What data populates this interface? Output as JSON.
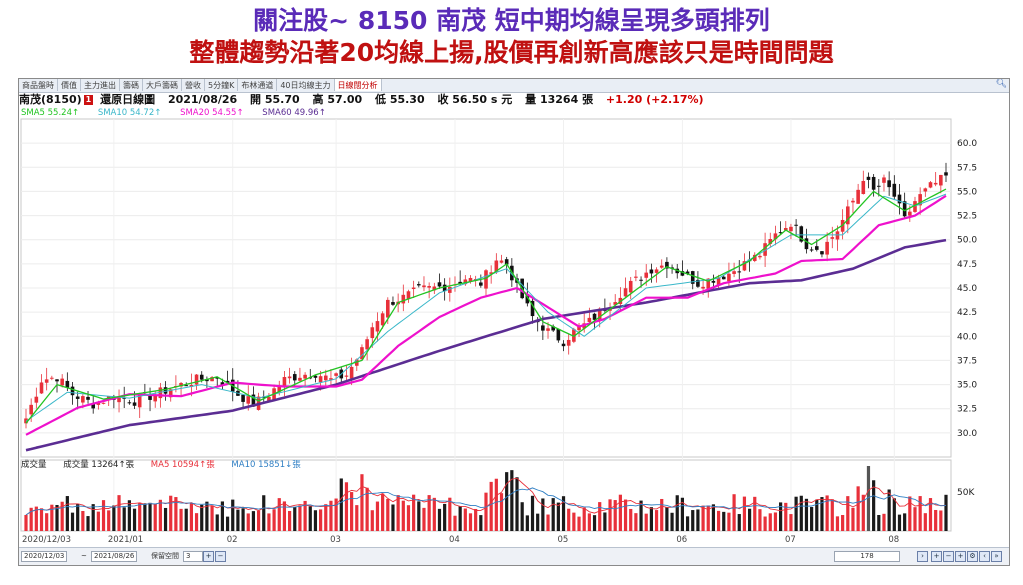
{
  "headline": {
    "line1": "關注股~ 8150 南茂  短中期均線呈現多頭排列",
    "line2": "整體趨勢沿著20均線上揚,股價再創新高應該只是時間問題"
  },
  "tabs": [
    "商品盤時",
    "價值",
    "主力進出",
    "籌碼",
    "大戶籌碼",
    "營收",
    "5分鐘K",
    "布林通道",
    "40日均線主力",
    "日線闊分析"
  ],
  "stock_info": {
    "name": "南茂(8150)",
    "badge": "1",
    "mode": "還原日線圖",
    "date": "2021/08/26",
    "open": "開 55.70",
    "high": "高 57.00",
    "low": "低 55.30",
    "close": "收 56.50 s 元",
    "volume": "量 13264 張",
    "change": "+1.20 (+2.17%)"
  },
  "legend": {
    "sma5": "SMA5 55.24↑",
    "sma10": "SMA10 54.72↑",
    "sma20": "SMA20 54.55↑",
    "sma60": "SMA60 49.96↑"
  },
  "volume_legend": {
    "title": "成交量",
    "vol": "成交量 13264↑張",
    "ma5": "MA5 10594↑張",
    "ma10": "MA10 15851↓張"
  },
  "colors": {
    "up": "#e8303a",
    "down": "#111111",
    "sma5": "#22c422",
    "sma10": "#39b7c9",
    "sma20": "#ee11cc",
    "sma60": "#5b2d93"
  },
  "bottom_bar": {
    "start_date": "2020/12/03",
    "end_date": "2021/08/26",
    "space_label": "保留空間",
    "space_value": "3",
    "bars": "178"
  },
  "chart_data": {
    "type": "candlestick",
    "xlabels": [
      "2020/12/03",
      "2021/01",
      "02",
      "03",
      "04",
      "05",
      "06",
      "07",
      "08"
    ],
    "yticks": [
      30.0,
      32.5,
      35.0,
      37.5,
      40.0,
      42.5,
      45.0,
      47.5,
      50.0,
      52.5,
      55.0,
      57.5,
      60.0
    ],
    "ylim": [
      27.5,
      62.5
    ],
    "volume_tick": "50K",
    "ohlc_anchors": [
      {
        "i": 0,
        "c": 31.5
      },
      {
        "i": 3,
        "c": 35.5
      },
      {
        "i": 6,
        "c": 35.8
      },
      {
        "i": 9,
        "c": 34.0
      },
      {
        "i": 13,
        "c": 33.0
      },
      {
        "i": 17,
        "c": 33.8
      },
      {
        "i": 21,
        "c": 33.3
      },
      {
        "i": 25,
        "c": 34.0
      },
      {
        "i": 29,
        "c": 34.8
      },
      {
        "i": 33,
        "c": 35.5
      },
      {
        "i": 37,
        "c": 35.8
      },
      {
        "i": 41,
        "c": 34.0
      },
      {
        "i": 44,
        "c": 33.0
      },
      {
        "i": 47,
        "c": 34.0
      },
      {
        "i": 50,
        "c": 35.5
      },
      {
        "i": 53,
        "c": 36.0
      },
      {
        "i": 56,
        "c": 36.2
      },
      {
        "i": 59,
        "c": 35.5
      },
      {
        "i": 62,
        "c": 36.0
      },
      {
        "i": 65,
        "c": 38.5
      },
      {
        "i": 67,
        "c": 41.0
      },
      {
        "i": 70,
        "c": 43.5
      },
      {
        "i": 73,
        "c": 44.0
      },
      {
        "i": 76,
        "c": 44.8
      },
      {
        "i": 79,
        "c": 45.0
      },
      {
        "i": 82,
        "c": 45.3
      },
      {
        "i": 85,
        "c": 46.0
      },
      {
        "i": 88,
        "c": 45.5
      },
      {
        "i": 91,
        "c": 48.0
      },
      {
        "i": 93,
        "c": 47.5
      },
      {
        "i": 95,
        "c": 45.0
      },
      {
        "i": 98,
        "c": 42.0
      },
      {
        "i": 101,
        "c": 40.5
      },
      {
        "i": 104,
        "c": 39.5
      },
      {
        "i": 106,
        "c": 40.5
      },
      {
        "i": 109,
        "c": 41.5
      },
      {
        "i": 112,
        "c": 43.0
      },
      {
        "i": 115,
        "c": 44.5
      },
      {
        "i": 118,
        "c": 45.8
      },
      {
        "i": 121,
        "c": 47.0
      },
      {
        "i": 124,
        "c": 47.5
      },
      {
        "i": 127,
        "c": 46.5
      },
      {
        "i": 130,
        "c": 45.5
      },
      {
        "i": 133,
        "c": 46.0
      },
      {
        "i": 136,
        "c": 46.5
      },
      {
        "i": 139,
        "c": 47.5
      },
      {
        "i": 142,
        "c": 48.5
      },
      {
        "i": 145,
        "c": 50.5
      },
      {
        "i": 148,
        "c": 51.8
      },
      {
        "i": 151,
        "c": 49.5
      },
      {
        "i": 154,
        "c": 49.0
      },
      {
        "i": 157,
        "c": 51.0
      },
      {
        "i": 160,
        "c": 54.0
      },
      {
        "i": 162,
        "c": 56.5
      },
      {
        "i": 164,
        "c": 55.0
      },
      {
        "i": 166,
        "c": 56.0
      },
      {
        "i": 168,
        "c": 54.5
      },
      {
        "i": 170,
        "c": 52.0
      },
      {
        "i": 172,
        "c": 54.0
      },
      {
        "i": 175,
        "c": 55.5
      },
      {
        "i": 178,
        "c": 56.5
      }
    ],
    "sma_anchors": {
      "sma5": [
        [
          0,
          31.0
        ],
        [
          6,
          35.0
        ],
        [
          15,
          33.5
        ],
        [
          27,
          34.5
        ],
        [
          37,
          35.8
        ],
        [
          45,
          33.3
        ],
        [
          56,
          36.0
        ],
        [
          65,
          37.5
        ],
        [
          72,
          43.5
        ],
        [
          80,
          45.0
        ],
        [
          89,
          46.0
        ],
        [
          93,
          47.5
        ],
        [
          100,
          41.5
        ],
        [
          106,
          40.0
        ],
        [
          116,
          44.0
        ],
        [
          124,
          47.2
        ],
        [
          132,
          45.7
        ],
        [
          140,
          47.8
        ],
        [
          147,
          51.0
        ],
        [
          152,
          49.5
        ],
        [
          158,
          51.5
        ],
        [
          164,
          55.0
        ],
        [
          170,
          53.0
        ],
        [
          178,
          55.24
        ]
      ],
      "sma10": [
        [
          0,
          31.2
        ],
        [
          8,
          34.2
        ],
        [
          20,
          33.6
        ],
        [
          34,
          35.0
        ],
        [
          45,
          33.6
        ],
        [
          60,
          35.6
        ],
        [
          70,
          40.5
        ],
        [
          80,
          44.5
        ],
        [
          93,
          47.0
        ],
        [
          101,
          42.5
        ],
        [
          108,
          40.0
        ],
        [
          120,
          45.0
        ],
        [
          134,
          46.0
        ],
        [
          148,
          50.5
        ],
        [
          158,
          50.5
        ],
        [
          166,
          54.5
        ],
        [
          172,
          53.5
        ],
        [
          178,
          54.72
        ]
      ],
      "sma20": [
        [
          0,
          29.8
        ],
        [
          10,
          32.6
        ],
        [
          20,
          34.0
        ],
        [
          30,
          33.8
        ],
        [
          40,
          35.2
        ],
        [
          50,
          34.8
        ],
        [
          60,
          34.8
        ],
        [
          65,
          35.5
        ],
        [
          72,
          39.0
        ],
        [
          80,
          42.0
        ],
        [
          88,
          44.0
        ],
        [
          95,
          45.0
        ],
        [
          101,
          43.0
        ],
        [
          107,
          41.0
        ],
        [
          112,
          41.8
        ],
        [
          120,
          44.0
        ],
        [
          128,
          44.0
        ],
        [
          135,
          45.5
        ],
        [
          145,
          46.5
        ],
        [
          150,
          47.8
        ],
        [
          158,
          48.0
        ],
        [
          165,
          51.5
        ],
        [
          172,
          52.5
        ],
        [
          178,
          54.55
        ]
      ],
      "sma60": [
        [
          0,
          28.2
        ],
        [
          20,
          30.8
        ],
        [
          40,
          32.3
        ],
        [
          60,
          35.0
        ],
        [
          80,
          38.5
        ],
        [
          100,
          41.8
        ],
        [
          120,
          43.5
        ],
        [
          140,
          45.5
        ],
        [
          150,
          45.8
        ],
        [
          160,
          47.0
        ],
        [
          170,
          49.2
        ],
        [
          178,
          49.96
        ]
      ]
    }
  }
}
